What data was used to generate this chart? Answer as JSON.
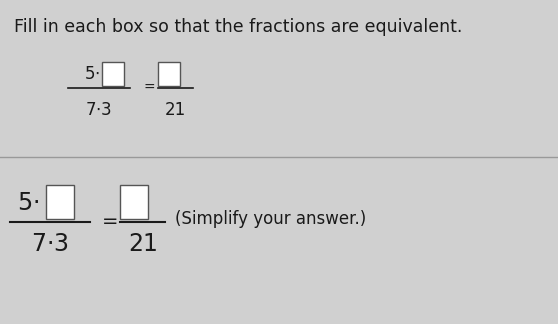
{
  "bg_color": "#d0d0d0",
  "title_text": "Fill in each box so that the fractions are equivalent.",
  "title_fontsize": 12.5,
  "box_color": "#ffffff",
  "text_color": "#1a1a1a",
  "line_color": "#aaaaaa",
  "divider_color": "#999999",
  "simplify_text": "(Simplify your answer.)",
  "simplify_fontsize": 12
}
